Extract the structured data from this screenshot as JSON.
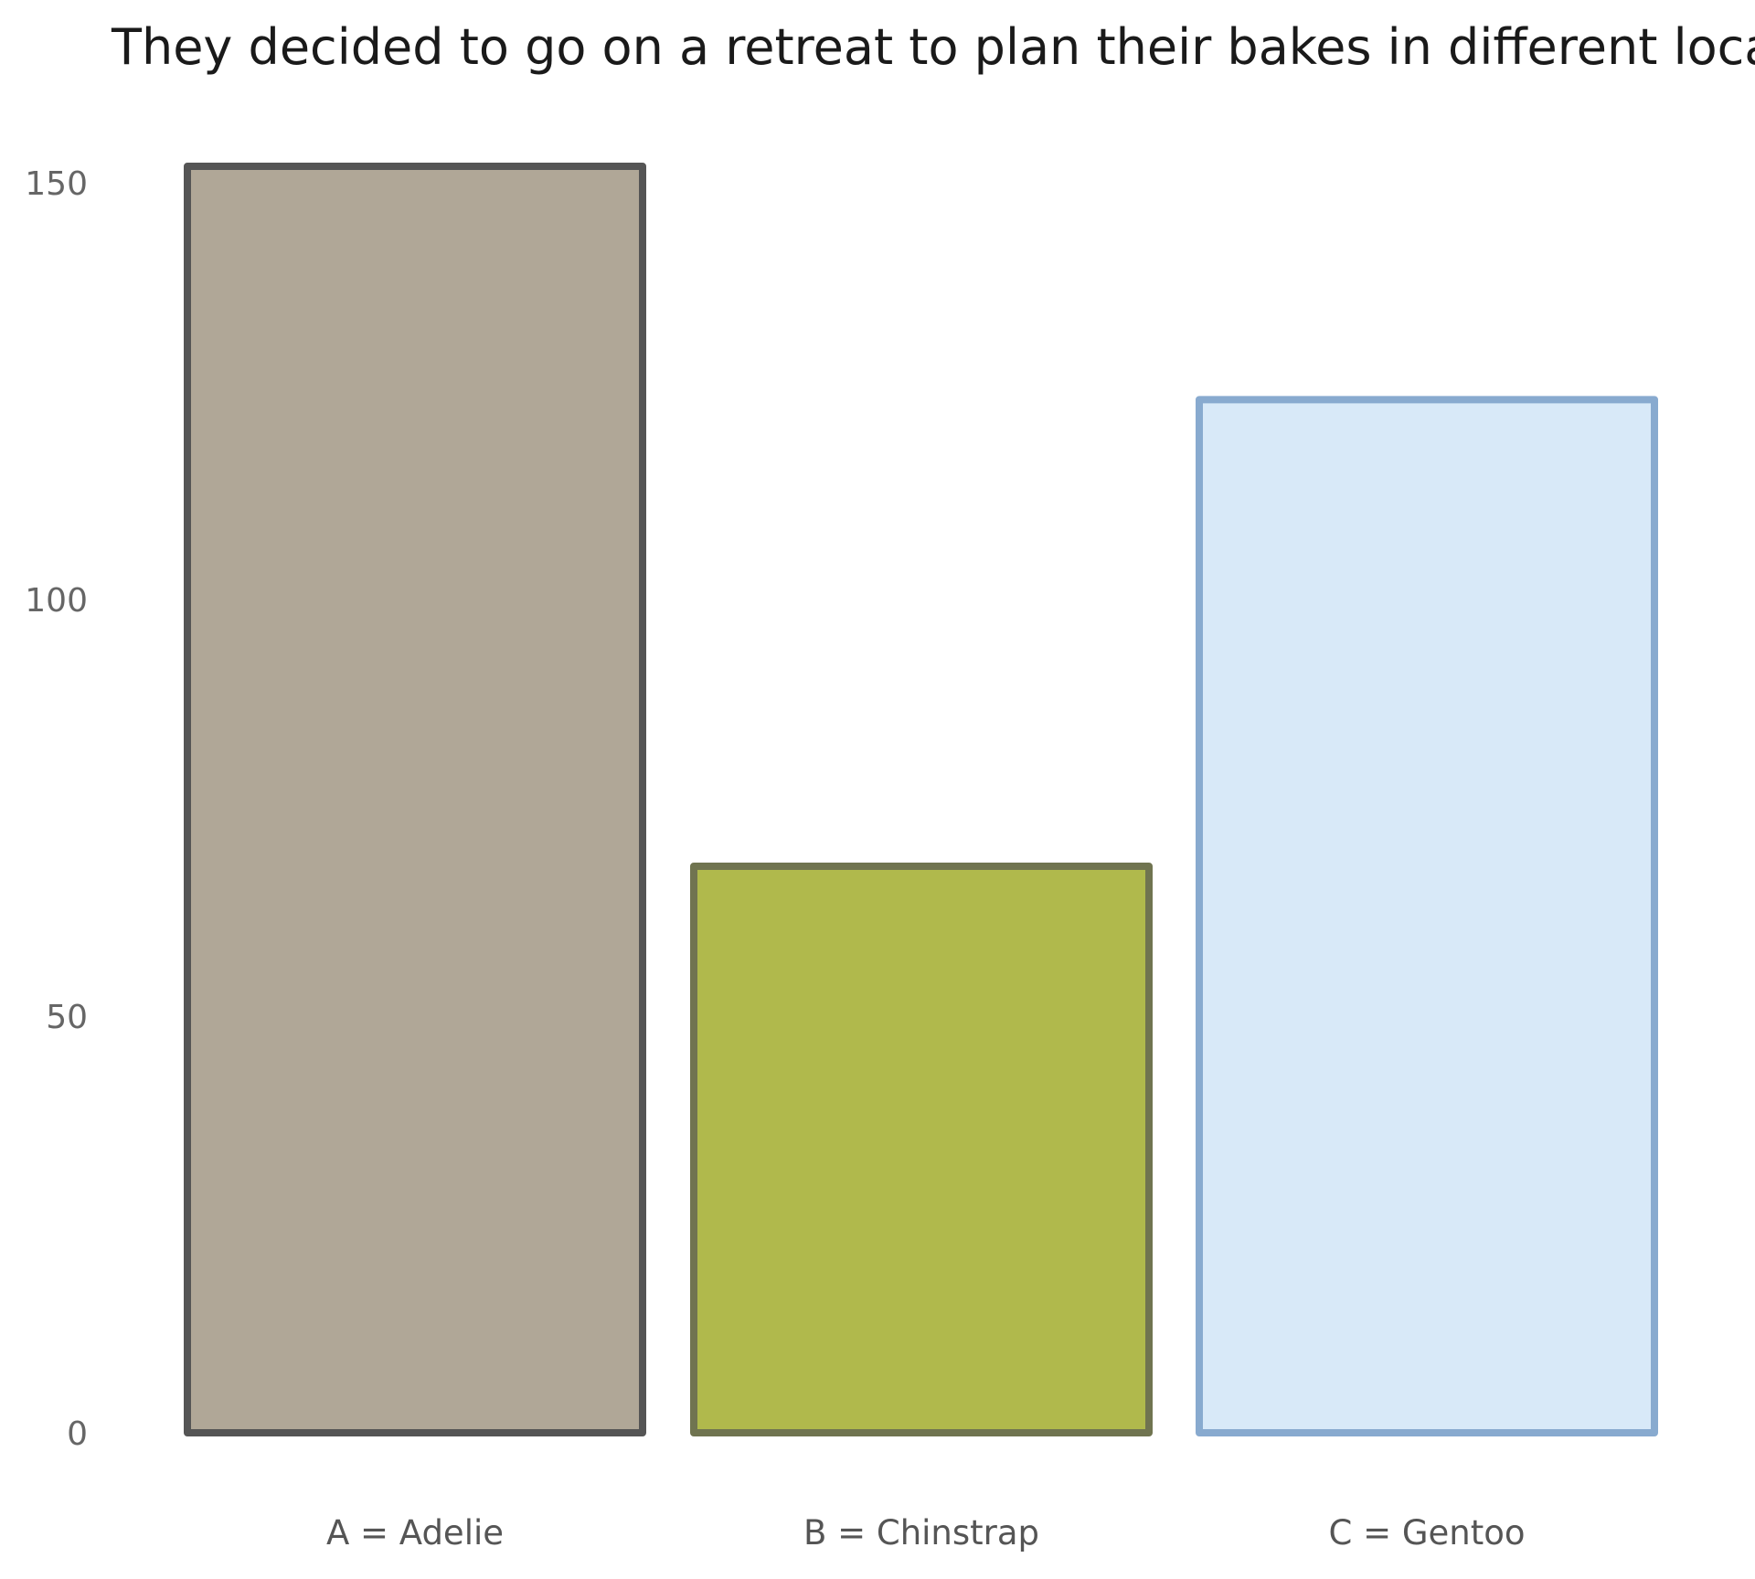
{
  "chart_data": {
    "type": "bar",
    "title": "They decided to go on a retreat to plan their bakes in different locat",
    "xlabel": "",
    "ylabel": "",
    "categories": [
      "A = Adelie",
      "B = Chinstrap",
      "C = Gentoo"
    ],
    "values": [
      152,
      68,
      124
    ],
    "ylim": [
      0,
      152
    ],
    "yticks": [
      0,
      50,
      100,
      150
    ],
    "ytick_labels": [
      "0",
      "50",
      "100",
      "150"
    ],
    "grid": false,
    "legend": "none",
    "bar_colors": [
      {
        "fill": "#b0a797",
        "stroke": "#555555"
      },
      {
        "fill": "#b0b94c",
        "stroke": "#707450"
      },
      {
        "fill": "#d8e9f8",
        "stroke": "#88aacf"
      }
    ]
  }
}
